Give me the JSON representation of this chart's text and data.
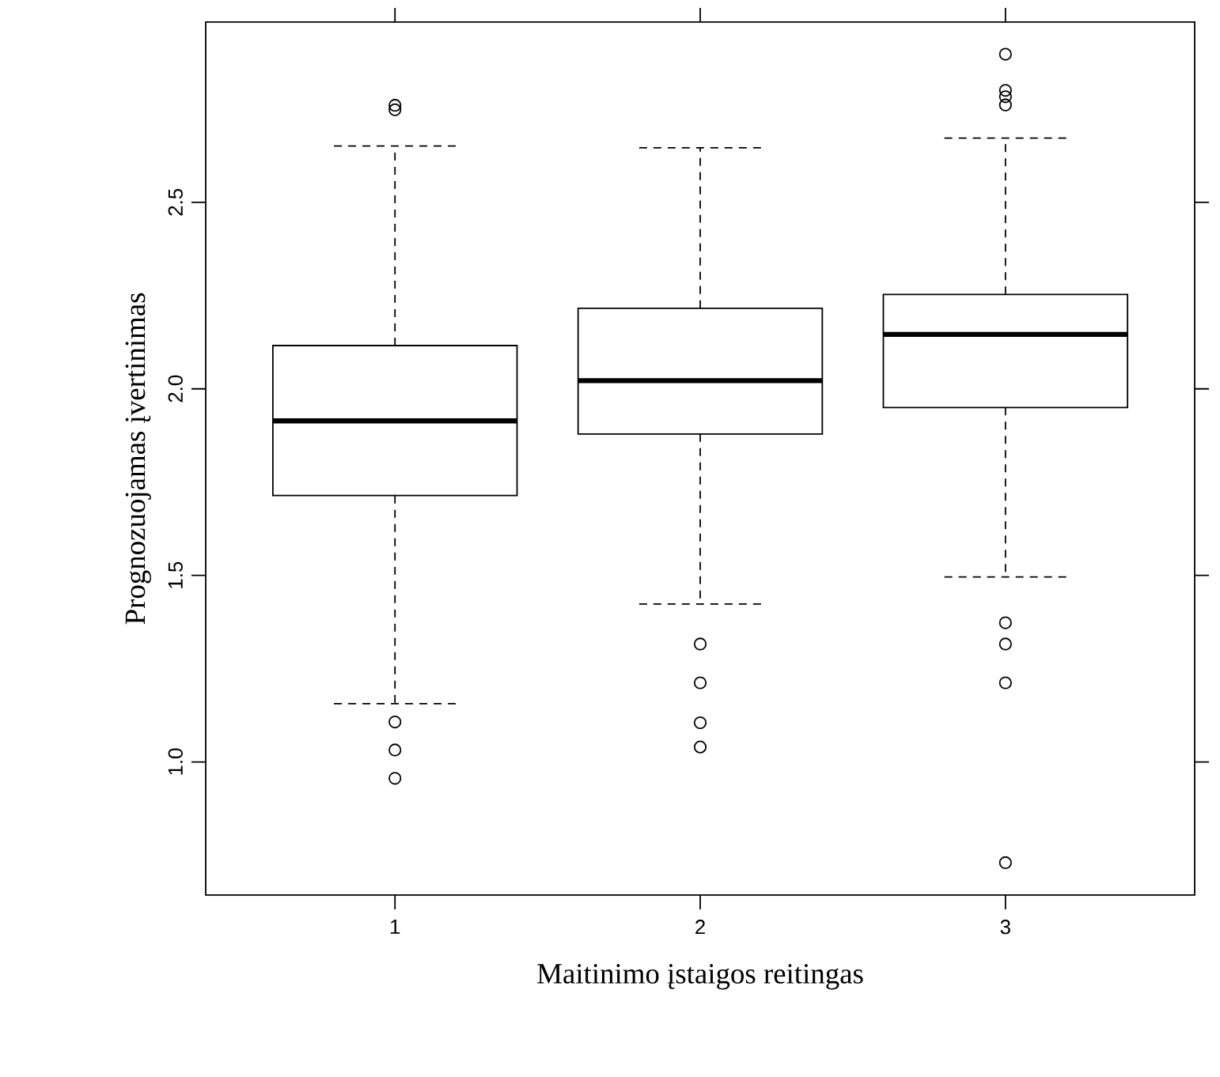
{
  "chart_data": {
    "type": "box",
    "xlabel": "Maitinimo įstaigos reitingas",
    "ylabel": "Prognozuojamas įvertinimas",
    "categories": [
      "1",
      "2",
      "3"
    ],
    "boxes": [
      {
        "low": 1.156,
        "q1": 1.714,
        "median": 1.914,
        "q3": 2.116,
        "high": 2.651,
        "outliers": [
          2.748,
          2.76,
          1.107,
          1.032,
          0.956
        ]
      },
      {
        "low": 1.423,
        "q1": 1.879,
        "median": 2.022,
        "q3": 2.216,
        "high": 2.646,
        "outliers": [
          1.316,
          1.212,
          1.105,
          1.04
        ]
      },
      {
        "low": 1.496,
        "q1": 1.95,
        "median": 2.146,
        "q3": 2.253,
        "high": 2.672,
        "outliers": [
          2.897,
          2.8,
          2.783,
          2.761,
          1.373,
          1.316,
          1.212,
          0.73
        ]
      }
    ],
    "ylim": [
      0.643,
      2.983
    ],
    "yticks": [
      {
        "value": 1,
        "label": "1.0"
      },
      {
        "value": 1.5,
        "label": "1.5"
      },
      {
        "value": 2,
        "label": "2.0"
      },
      {
        "value": 2.5,
        "label": "2.5"
      }
    ],
    "marker": "circle"
  }
}
